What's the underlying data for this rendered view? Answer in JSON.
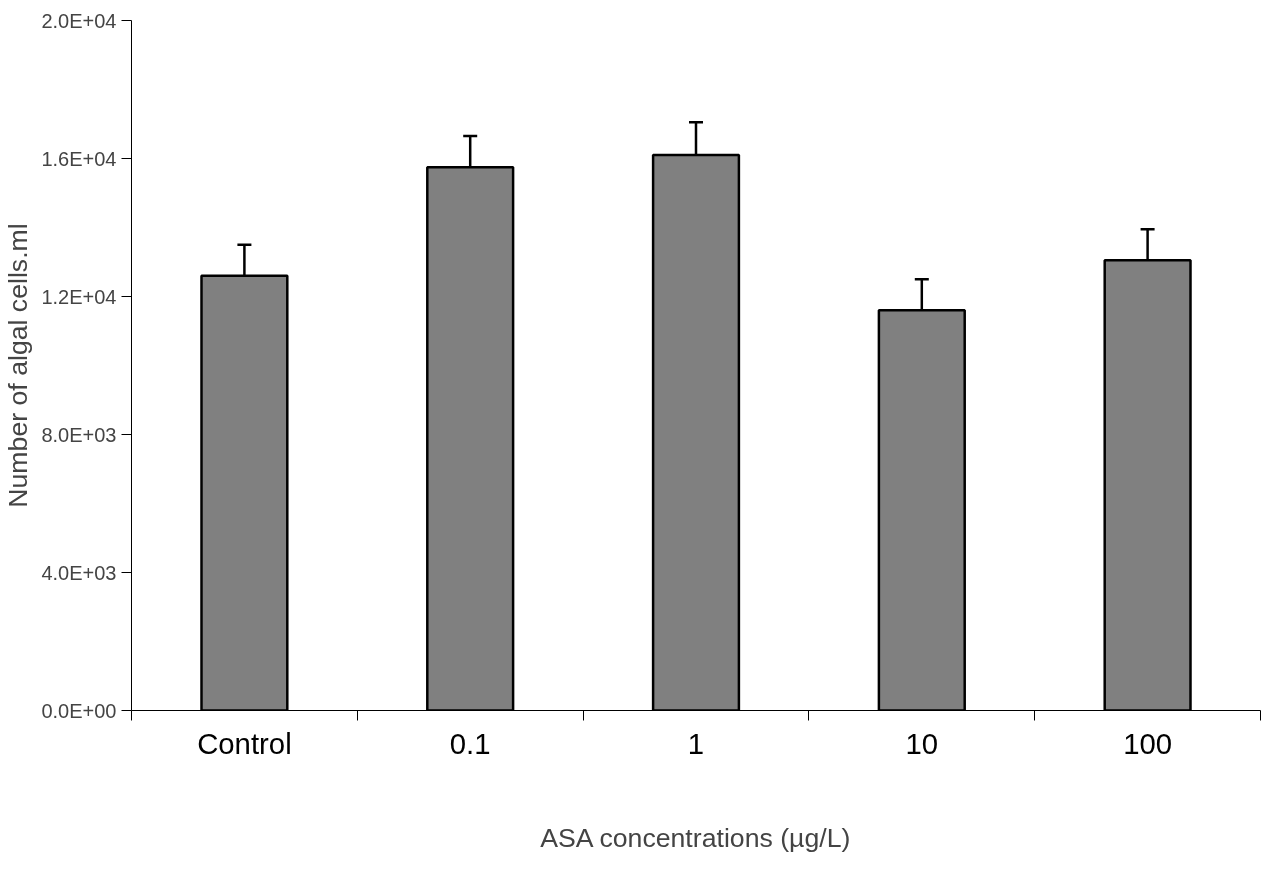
{
  "chart_data": {
    "type": "bar",
    "xlabel": "ASA concentrations (µg/L)",
    "ylabel": "Number of algal cells.ml",
    "categories": [
      "Control",
      "0.1",
      "1",
      "10",
      "100"
    ],
    "values": [
      12600,
      15750,
      16100,
      11600,
      13050
    ],
    "errors": [
      900,
      900,
      950,
      900,
      900
    ],
    "color": "#808080",
    "ylim": [
      0,
      20000
    ],
    "yticks": [
      {
        "value": 0,
        "label": "0.0E+00"
      },
      {
        "value": 4000,
        "label": "4.0E+03"
      },
      {
        "value": 8000,
        "label": "8.0E+03"
      },
      {
        "value": 12000,
        "label": "1.2E+04"
      },
      {
        "value": 16000,
        "label": "1.6E+04"
      },
      {
        "value": 20000,
        "label": "2.0E+04"
      }
    ],
    "grid": false
  }
}
